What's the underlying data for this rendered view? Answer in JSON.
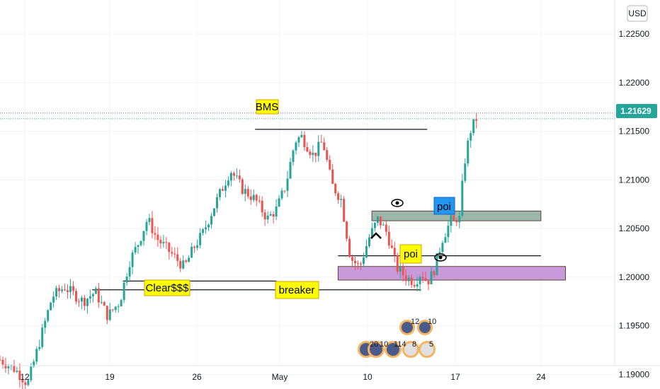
{
  "chart_data": {
    "type": "candlestick",
    "currency": "USD",
    "last_price": "1.21629",
    "y_ticks": [
      "1.22500",
      "1.22000",
      "1.21500",
      "1.21000",
      "1.20500",
      "1.20000",
      "1.19500",
      "1.19000"
    ],
    "y_tick_values": [
      1.225,
      1.22,
      1.215,
      1.21,
      1.205,
      1.2,
      1.195,
      1.19
    ],
    "x_ticks": [
      "12",
      "19",
      "26",
      "May",
      "10",
      "17",
      "24"
    ],
    "ylim": [
      1.1885,
      1.2285
    ],
    "series_path": [
      [
        1.1915,
        0.0
      ],
      [
        1.1905,
        0.05
      ],
      [
        1.189,
        0.09
      ],
      [
        1.1935,
        0.13
      ],
      [
        1.198,
        0.17
      ],
      [
        1.199,
        0.21
      ],
      [
        1.1975,
        0.27
      ],
      [
        1.1985,
        0.31
      ],
      [
        1.196,
        0.35
      ],
      [
        1.1975,
        0.39
      ],
      [
        1.2015,
        0.42
      ],
      [
        1.2035,
        0.45
      ],
      [
        1.206,
        0.48
      ],
      [
        1.204,
        0.51
      ],
      [
        1.203,
        0.54
      ],
      [
        1.202,
        0.57
      ],
      [
        1.201,
        0.6
      ],
      [
        1.203,
        0.63
      ],
      [
        1.2045,
        0.66
      ],
      [
        1.2075,
        0.7
      ],
      [
        1.211,
        0.75
      ],
      [
        1.209,
        0.79
      ],
      [
        1.208,
        0.83
      ],
      [
        1.206,
        0.87
      ],
      [
        1.207,
        0.9
      ],
      [
        1.2095,
        0.93
      ],
      [
        1.214,
        0.96
      ],
      [
        1.2145,
        0.98
      ],
      [
        1.2125,
        1.02
      ],
      [
        1.214,
        1.05
      ],
      [
        1.2095,
        1.08
      ],
      [
        1.208,
        1.11
      ],
      [
        1.202,
        1.14
      ],
      [
        1.201,
        1.17
      ],
      [
        1.204,
        1.2
      ],
      [
        1.206,
        1.23
      ],
      [
        1.2045,
        1.26
      ],
      [
        1.201,
        1.29
      ],
      [
        1.2,
        1.32
      ],
      [
        1.1995,
        1.35
      ],
      [
        1.2005,
        1.37
      ],
      [
        1.1995,
        1.39
      ],
      [
        1.2005,
        1.41
      ],
      [
        1.204,
        1.44
      ],
      [
        1.206,
        1.47
      ],
      [
        1.2055,
        1.48
      ],
      [
        1.2065,
        1.49
      ],
      [
        1.206,
        1.495
      ],
      [
        1.2115,
        1.51
      ],
      [
        1.215,
        1.53
      ],
      [
        1.2163,
        1.55
      ]
    ],
    "levels": [
      {
        "name": "bms-level",
        "y": 1.2152,
        "x1": 0.83,
        "x2": 1.39
      },
      {
        "name": "clear-level",
        "y": 1.1996,
        "x1": 0.4,
        "x2": 0.9
      },
      {
        "name": "breaker-level",
        "y": 1.1987,
        "x1": 0.3,
        "x2": 1.37
      },
      {
        "name": "upper-level",
        "y": 1.2022,
        "x1": 1.1,
        "x2": 1.76
      }
    ],
    "zones": [
      {
        "name": "poi-zone-upper",
        "top": 1.2068,
        "bottom": 1.2058,
        "x1": 1.21,
        "x2": 1.76,
        "fill": "#9bb7ac"
      },
      {
        "name": "poi-zone-lower",
        "top": 1.2011,
        "bottom": 1.1997,
        "x1": 1.1,
        "x2": 1.84,
        "fill": "#c99ad9"
      }
    ],
    "annotations": {
      "bms": "BMS",
      "clear": "Clear$$$",
      "breaker": "breaker",
      "poi_upper": "poi",
      "poi_lower": "poi"
    },
    "events": [
      "20",
      "10",
      "114",
      "8",
      "5",
      "12",
      "10"
    ],
    "colors": {
      "up": "#26a69a",
      "down": "#ef5350",
      "label_bg": "#ffff00",
      "poi_label_bg": "#2196f3",
      "last_price_bg": "#26a69a",
      "level": "#131722"
    }
  }
}
